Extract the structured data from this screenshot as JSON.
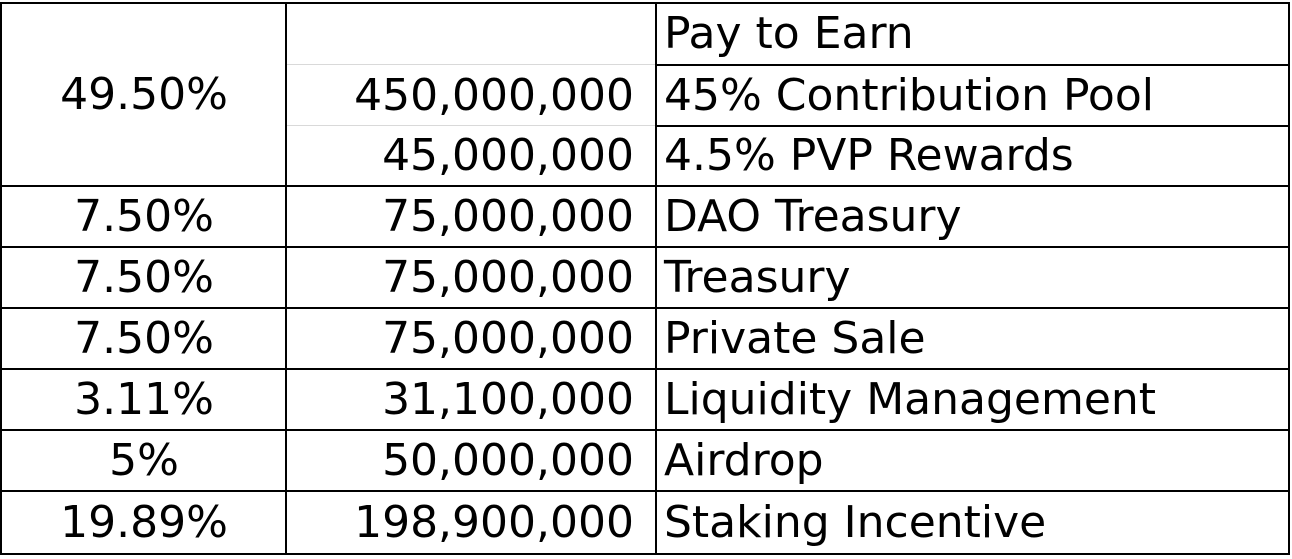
{
  "table": {
    "row_group_1": {
      "percent": "49.50%",
      "lines": [
        {
          "amount": "",
          "label": "Pay to Earn"
        },
        {
          "amount": "450,000,000",
          "label": "45% Contribution Pool"
        },
        {
          "amount": "45,000,000",
          "label": "4.5% PVP Rewards"
        }
      ]
    },
    "rows": [
      {
        "percent": "7.50%",
        "amount": "75,000,000",
        "label": "DAO Treasury"
      },
      {
        "percent": "7.50%",
        "amount": "75,000,000",
        "label": "Treasury"
      },
      {
        "percent": "7.50%",
        "amount": "75,000,000",
        "label": "Private Sale"
      },
      {
        "percent": "3.11%",
        "amount": "31,100,000",
        "label": "Liquidity Management"
      },
      {
        "percent": "5%",
        "amount": "50,000,000",
        "label": "Airdrop"
      },
      {
        "percent": "19.89%",
        "amount": "198,900,000",
        "label": "Staking Incentive"
      }
    ]
  }
}
